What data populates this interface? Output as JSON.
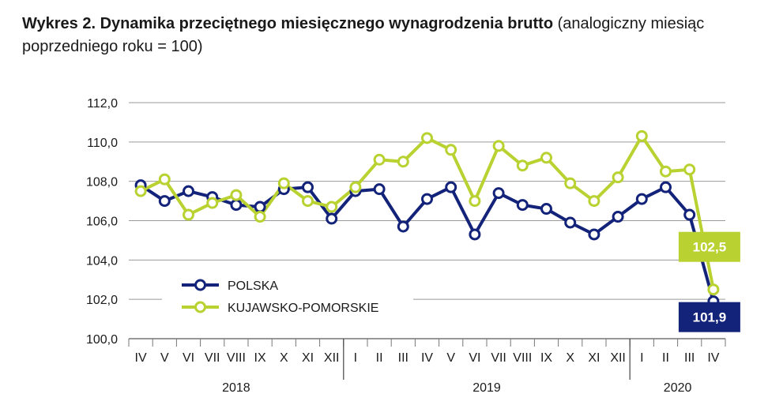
{
  "title": {
    "bold": "Wykres 2. Dynamika przeciętnego miesięcznego wynagrodzenia brutto",
    "rest": "(analogiczny miesiąc poprzedniego roku = 100)"
  },
  "chart_data": {
    "type": "line",
    "x": [
      "IV",
      "V",
      "VI",
      "VII",
      "VIII",
      "IX",
      "X",
      "XI",
      "XII",
      "I",
      "II",
      "III",
      "IV",
      "V",
      "VI",
      "VII",
      "VIII",
      "IX",
      "X",
      "XI",
      "XII",
      "I",
      "II",
      "III",
      "IV"
    ],
    "years": [
      {
        "label": "2018",
        "from": 0,
        "to": 8
      },
      {
        "label": "2019",
        "from": 9,
        "to": 20
      },
      {
        "label": "2020",
        "from": 21,
        "to": 24
      }
    ],
    "yticks": [
      "112,0",
      "110,0",
      "108,0",
      "106,0",
      "104,0",
      "102,0",
      "100,0"
    ],
    "ylim": [
      100,
      112
    ],
    "grid": true,
    "series": [
      {
        "name": "POLSKA",
        "color": "#14237a",
        "values": [
          107.8,
          107.0,
          107.5,
          107.2,
          106.8,
          106.7,
          107.6,
          107.7,
          106.1,
          107.5,
          107.6,
          105.7,
          107.1,
          107.7,
          105.3,
          107.4,
          106.8,
          106.6,
          105.9,
          105.3,
          106.2,
          107.1,
          107.7,
          106.3,
          101.9
        ]
      },
      {
        "name": "KUJAWSKO-POMORSKIE",
        "color": "#b9d232",
        "values": [
          107.5,
          108.1,
          106.3,
          106.9,
          107.3,
          106.2,
          107.9,
          107.0,
          106.7,
          107.7,
          109.1,
          109.0,
          110.2,
          109.6,
          107.0,
          109.8,
          108.8,
          109.2,
          107.9,
          107.0,
          108.2,
          110.3,
          108.5,
          108.6,
          102.5
        ]
      }
    ],
    "legend_position": "bottom-left",
    "annotations": [
      {
        "series": "KUJAWSKO-POMORSKIE",
        "text": "102,5",
        "color": "#b9d232"
      },
      {
        "series": "POLSKA",
        "text": "101,9",
        "color": "#14237a"
      }
    ]
  }
}
